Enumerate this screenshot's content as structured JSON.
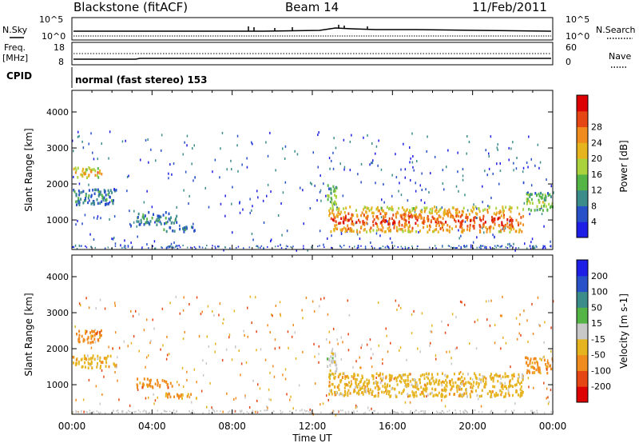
{
  "header": {
    "station": "Blackstone (fitACF)",
    "beam": "Beam 14",
    "date": "11/Feb/2011"
  },
  "panels": {
    "nsky_label": "N.Sky",
    "nsky_ticks": [
      "10^5",
      "10^0"
    ],
    "nsearch_label": "N.Search",
    "nsearch_ticks": [
      "10^5",
      "10^0"
    ],
    "freq_label": "Freq.",
    "freq_unit": "[MHz]",
    "freq_ticks": [
      "18",
      "8"
    ],
    "nave_label": "Nave",
    "nave_ticks": [
      "60",
      "0"
    ],
    "cpid_label": "CPID",
    "cpid_text": "normal (fast stereo) 153"
  },
  "chart_data": [
    {
      "type": "heatmap",
      "title": "",
      "xlabel": "Time UT",
      "ylabel": "Slant Range [km]",
      "xticks": [
        "00:00",
        "04:00",
        "08:00",
        "12:00",
        "16:00",
        "20:00",
        "00:00"
      ],
      "yticks": [
        "1000",
        "2000",
        "3000",
        "4000"
      ],
      "ylim": [
        180,
        4600
      ],
      "colorbar_label": "Power [dB]",
      "colorbar_ticks": [
        "4",
        "8",
        "12",
        "16",
        "20",
        "24",
        "28"
      ],
      "colorbar_colors": [
        "#1e1ee6",
        "#2850c8",
        "#3c8c8c",
        "#55b446",
        "#aad23c",
        "#e6b41e",
        "#f08c1e",
        "#e64614",
        "#dc0000"
      ],
      "regions": [
        {
          "t0": 0.0,
          "t1": 1.5,
          "r0": 2200,
          "r1": 2500,
          "level": 0.45
        },
        {
          "t0": 0.0,
          "t1": 2.2,
          "r0": 1450,
          "r1": 1900,
          "level": 0.2
        },
        {
          "t0": 3.2,
          "t1": 5.2,
          "r0": 900,
          "r1": 1250,
          "level": 0.2
        },
        {
          "t0": 4.5,
          "t1": 6.2,
          "r0": 700,
          "r1": 850,
          "level": 0.15
        },
        {
          "t0": 12.7,
          "t1": 13.2,
          "r0": 1300,
          "r1": 2000,
          "level": 0.3
        },
        {
          "t0": 12.8,
          "t1": 22.5,
          "r0": 700,
          "r1": 1400,
          "level": 0.55
        },
        {
          "t0": 22.6,
          "t1": 24.0,
          "r0": 1300,
          "r1": 1800,
          "level": 0.3
        }
      ]
    },
    {
      "type": "heatmap",
      "title": "",
      "xlabel": "Time UT",
      "ylabel": "Slant Range [km]",
      "xticks": [
        "00:00",
        "04:00",
        "08:00",
        "12:00",
        "16:00",
        "20:00",
        "00:00"
      ],
      "yticks": [
        "1000",
        "2000",
        "3000",
        "4000"
      ],
      "ylim": [
        180,
        4600
      ],
      "colorbar_label": "Velocity [m s-1]",
      "colorbar_ticks": [
        "200",
        "100",
        "50",
        "15",
        "-15",
        "-50",
        "-100",
        "-200"
      ],
      "colorbar_colors": [
        "#1e1ee6",
        "#2850c8",
        "#3c8c8c",
        "#55b446",
        "#c8c8c8",
        "#e6b41e",
        "#f08c1e",
        "#e64614",
        "#dc0000"
      ],
      "regions": [
        {
          "t0": 0.0,
          "t1": 1.5,
          "r0": 2200,
          "r1": 2550,
          "value": "-50"
        },
        {
          "t0": 0.0,
          "t1": 2.2,
          "r0": 1500,
          "r1": 1850,
          "value": "-15"
        },
        {
          "t0": 3.2,
          "t1": 5.0,
          "r0": 950,
          "r1": 1200,
          "value": "-50"
        },
        {
          "t0": 4.5,
          "t1": 6.2,
          "r0": 650,
          "r1": 800,
          "value": "-50"
        },
        {
          "t0": 12.7,
          "t1": 13.2,
          "r0": 1300,
          "r1": 2000,
          "value": "15"
        },
        {
          "t0": 12.8,
          "t1": 22.5,
          "r0": 700,
          "r1": 1350,
          "value": "-15"
        },
        {
          "t0": 22.6,
          "t1": 24.0,
          "r0": 1350,
          "r1": 1800,
          "value": "-50"
        }
      ]
    }
  ]
}
